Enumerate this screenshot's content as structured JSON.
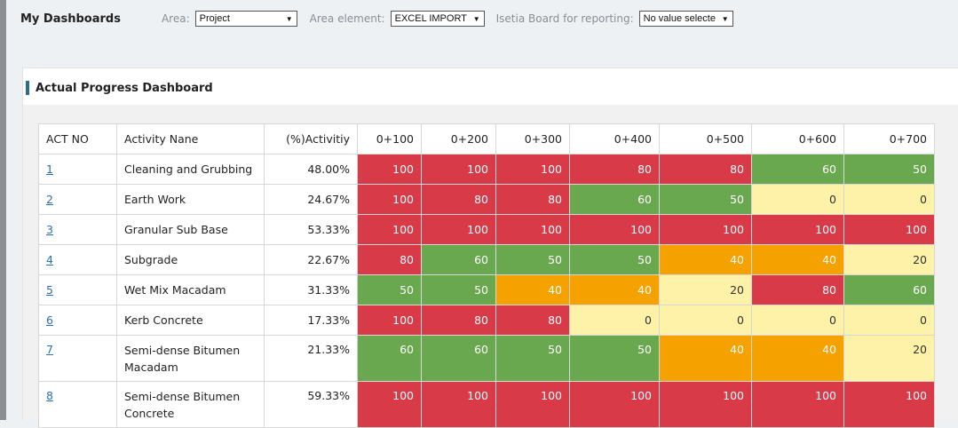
{
  "header": {
    "title": "My Dashboards",
    "filters": [
      {
        "label": "Area:",
        "value": "Project"
      },
      {
        "label": "Area element:",
        "value": "EXCEL IMPORT"
      },
      {
        "label": "Isetia Board for reporting:",
        "value": "No value selecte"
      }
    ]
  },
  "panel": {
    "title": "Actual Progress Dashboard",
    "accent_color": "#2b6f8c"
  },
  "table": {
    "columns": [
      "ACT NO",
      "Activity Nane",
      "(%)Activitiy",
      "0+100",
      "0+200",
      "0+300",
      "0+400",
      "0+500",
      "0+600",
      "0+700"
    ],
    "rows": [
      {
        "act": "1",
        "name": "Cleaning and Grubbing",
        "pct": "48.00%",
        "cells": [
          {
            "v": "100",
            "c": "red"
          },
          {
            "v": "100",
            "c": "red"
          },
          {
            "v": "100",
            "c": "red"
          },
          {
            "v": "80",
            "c": "red"
          },
          {
            "v": "80",
            "c": "red"
          },
          {
            "v": "60",
            "c": "green"
          },
          {
            "v": "50",
            "c": "green"
          }
        ]
      },
      {
        "act": "2",
        "name": "Earth Work",
        "pct": "24.67%",
        "cells": [
          {
            "v": "100",
            "c": "red"
          },
          {
            "v": "80",
            "c": "red"
          },
          {
            "v": "80",
            "c": "red"
          },
          {
            "v": "60",
            "c": "green"
          },
          {
            "v": "50",
            "c": "green"
          },
          {
            "v": "0",
            "c": "yellow"
          },
          {
            "v": "0",
            "c": "yellow"
          }
        ]
      },
      {
        "act": "3",
        "name": "Granular Sub Base",
        "pct": "53.33%",
        "cells": [
          {
            "v": "100",
            "c": "red"
          },
          {
            "v": "100",
            "c": "red"
          },
          {
            "v": "100",
            "c": "red"
          },
          {
            "v": "100",
            "c": "red"
          },
          {
            "v": "100",
            "c": "red"
          },
          {
            "v": "100",
            "c": "red"
          },
          {
            "v": "100",
            "c": "red"
          }
        ]
      },
      {
        "act": "4",
        "name": "Subgrade",
        "pct": "22.67%",
        "cells": [
          {
            "v": "80",
            "c": "red"
          },
          {
            "v": "60",
            "c": "green"
          },
          {
            "v": "50",
            "c": "green"
          },
          {
            "v": "50",
            "c": "green"
          },
          {
            "v": "40",
            "c": "orange"
          },
          {
            "v": "40",
            "c": "orange"
          },
          {
            "v": "20",
            "c": "yellow"
          }
        ]
      },
      {
        "act": "5",
        "name": "Wet Mix Macadam",
        "pct": "31.33%",
        "cells": [
          {
            "v": "50",
            "c": "green"
          },
          {
            "v": "50",
            "c": "green"
          },
          {
            "v": "40",
            "c": "orange"
          },
          {
            "v": "40",
            "c": "orange"
          },
          {
            "v": "20",
            "c": "yellow"
          },
          {
            "v": "80",
            "c": "red"
          },
          {
            "v": "60",
            "c": "green"
          }
        ]
      },
      {
        "act": "6",
        "name": "Kerb Concrete",
        "pct": "17.33%",
        "cells": [
          {
            "v": "100",
            "c": "red"
          },
          {
            "v": "80",
            "c": "red"
          },
          {
            "v": "80",
            "c": "red"
          },
          {
            "v": "0",
            "c": "yellow"
          },
          {
            "v": "0",
            "c": "yellow"
          },
          {
            "v": "0",
            "c": "yellow"
          },
          {
            "v": "0",
            "c": "yellow"
          }
        ]
      },
      {
        "act": "7",
        "name": "Semi-dense Bitumen Macadam",
        "pct": "21.33%",
        "tall": true,
        "cells": [
          {
            "v": "60",
            "c": "green"
          },
          {
            "v": "60",
            "c": "green"
          },
          {
            "v": "50",
            "c": "green"
          },
          {
            "v": "50",
            "c": "green"
          },
          {
            "v": "40",
            "c": "orange"
          },
          {
            "v": "40",
            "c": "orange"
          },
          {
            "v": "20",
            "c": "yellow"
          }
        ]
      },
      {
        "act": "8",
        "name": "Semi-dense Bitumen Concrete",
        "pct": "59.33%",
        "tall": true,
        "cells": [
          {
            "v": "100",
            "c": "red"
          },
          {
            "v": "100",
            "c": "red"
          },
          {
            "v": "100",
            "c": "red"
          },
          {
            "v": "100",
            "c": "red"
          },
          {
            "v": "100",
            "c": "red"
          },
          {
            "v": "100",
            "c": "red"
          },
          {
            "v": "100",
            "c": "red"
          }
        ]
      }
    ]
  },
  "colors": {
    "red": "#d93a48",
    "green": "#6aa84f",
    "orange": "#f5a100",
    "yellow": "#fdf2a8"
  }
}
